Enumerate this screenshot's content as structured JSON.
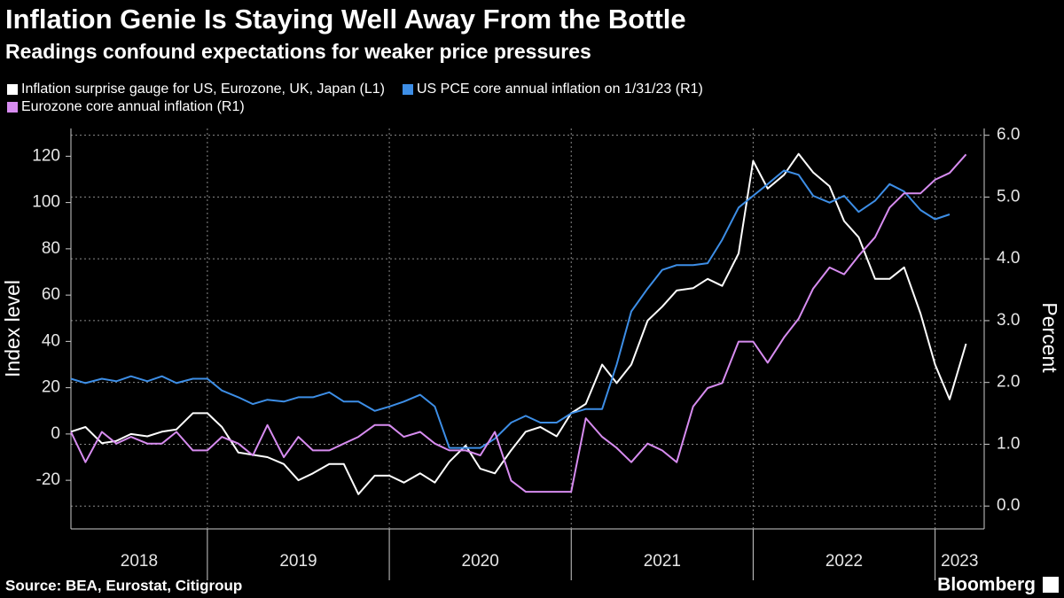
{
  "chart_data": {
    "type": "line",
    "title": "Inflation Genie Is Staying Well Away From the Bottle",
    "subtitle": "Readings confound expectations for weaker price pressures",
    "ylabel": "Index level",
    "y2label": "Percent",
    "source": "Source: BEA, Eurostat, Citigroup",
    "brand": "Bloomberg",
    "x": [
      2018.25,
      2018.33,
      2018.42,
      2018.5,
      2018.58,
      2018.67,
      2018.75,
      2018.83,
      2018.92,
      2019.0,
      2019.08,
      2019.17,
      2019.25,
      2019.33,
      2019.42,
      2019.5,
      2019.58,
      2019.67,
      2019.75,
      2019.83,
      2019.92,
      2020.0,
      2020.08,
      2020.17,
      2020.25,
      2020.33,
      2020.42,
      2020.5,
      2020.58,
      2020.67,
      2020.75,
      2020.83,
      2020.92,
      2021.0,
      2021.08,
      2021.17,
      2021.25,
      2021.33,
      2021.42,
      2021.5,
      2021.58,
      2021.67,
      2021.75,
      2021.83,
      2021.92,
      2022.0,
      2022.08,
      2022.17,
      2022.25,
      2022.33,
      2022.42,
      2022.5,
      2022.58,
      2022.67,
      2022.75,
      2022.83,
      2022.92,
      2023.0,
      2023.08,
      2023.17
    ],
    "xlim": [
      2018.25,
      2023.27
    ],
    "xticks": [
      2018,
      2019,
      2020,
      2021,
      2022,
      2023
    ],
    "ylim": [
      -41,
      132
    ],
    "yticks": [
      -20,
      0,
      20,
      40,
      60,
      80,
      100,
      120
    ],
    "y2lim": [
      -0.37,
      6.11
    ],
    "y2ticks": [
      {
        "value": 0,
        "label": "0.0"
      },
      {
        "value": 1,
        "label": "1.0"
      },
      {
        "value": 2,
        "label": "2.0"
      },
      {
        "value": 3,
        "label": "3.0"
      },
      {
        "value": 4,
        "label": "4.0"
      },
      {
        "value": 5,
        "label": "5.0"
      },
      {
        "value": 6,
        "label": "6.0"
      }
    ],
    "grid": true,
    "series": [
      {
        "name": "Inflation surprise gauge for US, Eurozone, UK, Japan (L1)",
        "color": "#ffffff",
        "axis": "y",
        "values": [
          1,
          3,
          -4,
          -3,
          0,
          -1,
          1,
          2,
          9,
          9,
          3,
          -8,
          -9,
          -10,
          -13,
          -20,
          -17,
          -13,
          -13,
          -26,
          -18,
          -18,
          -21,
          -17,
          -21,
          -12,
          -5,
          -15,
          -17,
          -7,
          1,
          3,
          -1,
          9,
          13,
          30,
          22,
          30,
          49,
          55,
          62,
          63,
          67,
          64,
          78,
          118,
          106,
          112,
          121,
          113,
          107,
          92,
          85,
          67,
          67,
          72,
          52,
          30,
          15,
          39
        ]
      },
      {
        "name": "US PCE core annual inflation on 1/31/23 (R1)",
        "color": "#3d8ee6",
        "axis": "y2",
        "values": [
          2.06,
          1.99,
          2.06,
          2.02,
          2.1,
          2.02,
          2.1,
          1.99,
          2.06,
          2.06,
          1.87,
          1.76,
          1.65,
          1.72,
          1.69,
          1.76,
          1.76,
          1.84,
          1.69,
          1.69,
          1.54,
          1.61,
          1.69,
          1.8,
          1.61,
          0.94,
          0.94,
          0.94,
          1.09,
          1.35,
          1.46,
          1.35,
          1.35,
          1.5,
          1.57,
          1.57,
          2.29,
          3.15,
          3.52,
          3.82,
          3.9,
          3.9,
          3.93,
          4.31,
          4.83,
          5.02,
          5.21,
          5.43,
          5.36,
          5.02,
          4.91,
          5.02,
          4.76,
          4.94,
          5.21,
          5.09,
          4.79,
          4.64,
          4.72,
          null
        ]
      },
      {
        "name": "Eurozone core annual inflation (R1)",
        "color": "#d78cf0",
        "axis": "y2",
        "values": [
          1.2,
          0.71,
          1.2,
          1.01,
          1.12,
          1.01,
          1.01,
          1.2,
          0.9,
          0.9,
          1.12,
          1.01,
          0.82,
          1.31,
          0.79,
          1.12,
          0.9,
          0.9,
          1.01,
          1.12,
          1.31,
          1.31,
          1.12,
          1.2,
          1.01,
          0.9,
          0.9,
          0.82,
          1.2,
          0.41,
          0.23,
          0.23,
          0.23,
          0.23,
          1.42,
          1.12,
          0.94,
          0.71,
          1.01,
          0.9,
          0.71,
          1.61,
          1.91,
          1.99,
          2.66,
          2.66,
          2.32,
          2.73,
          3.03,
          3.52,
          3.86,
          3.75,
          4.05,
          4.35,
          4.83,
          5.06,
          5.06,
          5.28,
          5.39,
          5.69
        ]
      }
    ]
  }
}
